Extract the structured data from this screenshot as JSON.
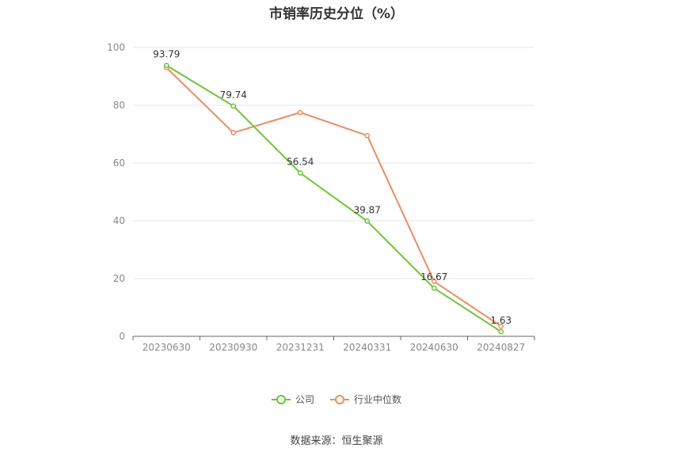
{
  "title": "市销率历史分位（%）",
  "source": "数据来源：恒生聚源",
  "legend": {
    "company": "公司",
    "industry": "行业中位数"
  },
  "colors": {
    "company": "#6cc832",
    "industry": "#f08c5c",
    "grid": "#e6e6ee",
    "axis": "#666666"
  },
  "chart_data": {
    "type": "line",
    "categories": [
      "20230630",
      "20230930",
      "20231231",
      "20240331",
      "20240630",
      "20240827"
    ],
    "ylim": [
      0,
      100
    ],
    "yticks": [
      0,
      20,
      40,
      60,
      80,
      100
    ],
    "grid": true,
    "legend_position": "bottom",
    "series": [
      {
        "name": "公司",
        "values": [
          93.79,
          79.74,
          56.54,
          39.87,
          16.67,
          1.63
        ],
        "data_labels": [
          "93.79",
          "79.74",
          "56.54",
          "39.87",
          "16.67",
          "1.63"
        ]
      },
      {
        "name": "行业中位数",
        "values": [
          93.0,
          70.5,
          77.5,
          69.5,
          19.0,
          3.5
        ]
      }
    ]
  }
}
